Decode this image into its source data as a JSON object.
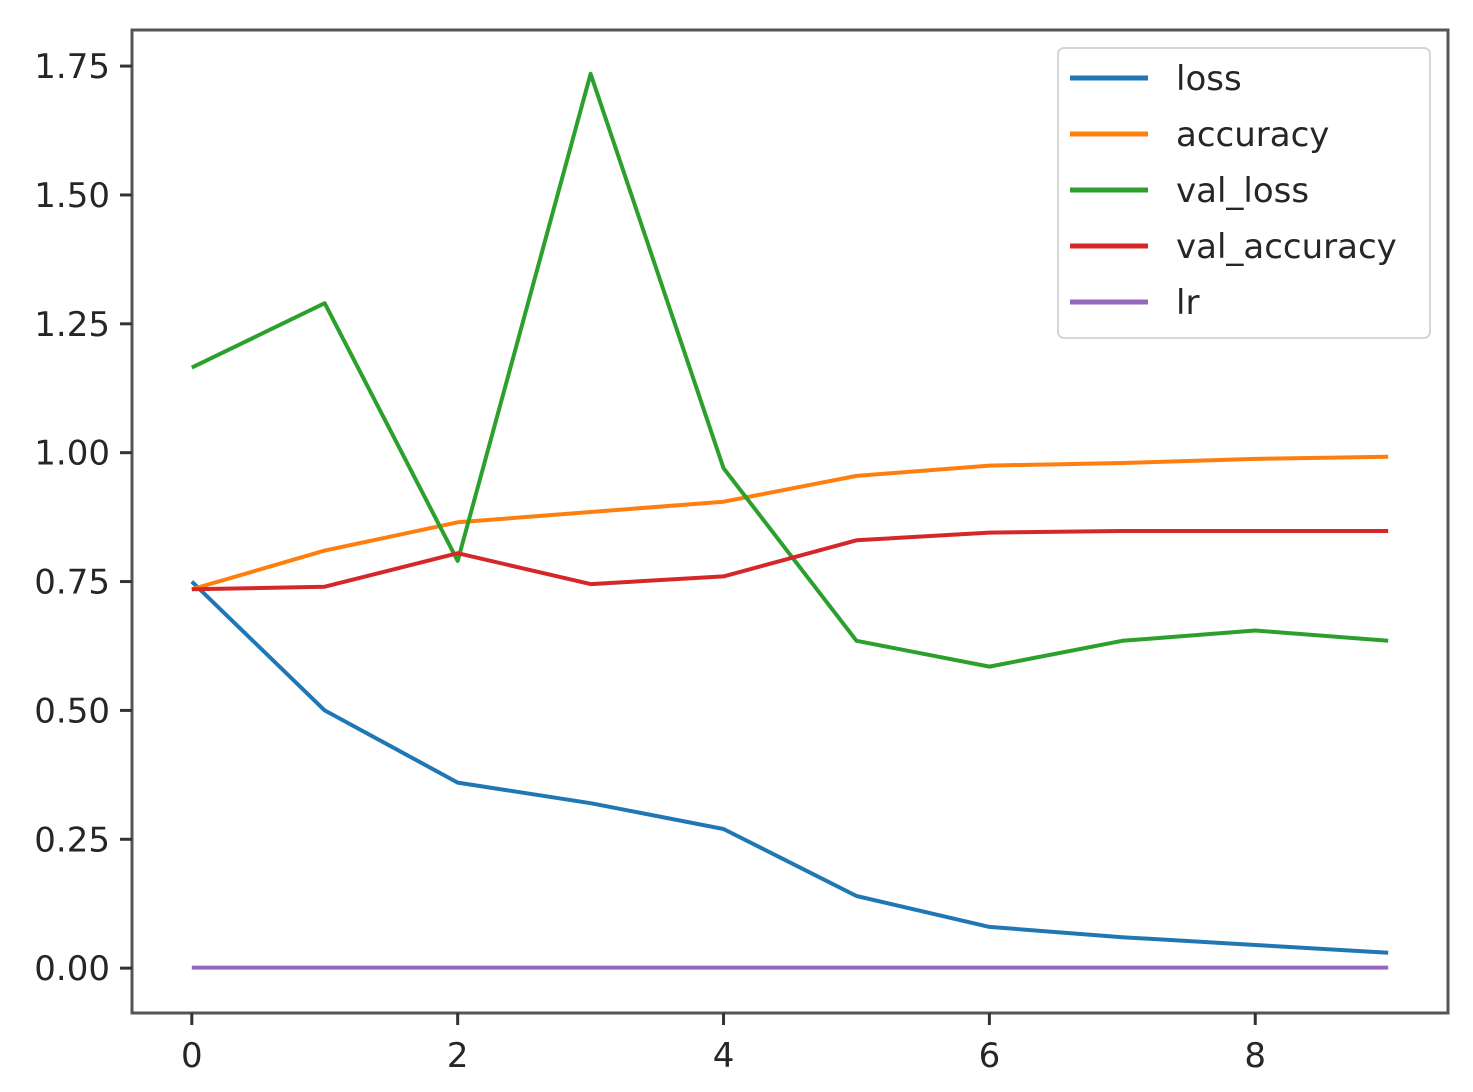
{
  "chart_data": {
    "type": "line",
    "title": "",
    "xlabel": "",
    "ylabel": "",
    "x": [
      0,
      1,
      2,
      3,
      4,
      5,
      6,
      7,
      8,
      9
    ],
    "xlim": [
      -0.45,
      9.45
    ],
    "ylim": [
      -0.087,
      1.82
    ],
    "xticks": [
      0,
      2,
      4,
      6,
      8
    ],
    "xtick_labels": [
      "0",
      "2",
      "4",
      "6",
      "8"
    ],
    "yticks": [
      0.0,
      0.25,
      0.5,
      0.75,
      1.0,
      1.25,
      1.5,
      1.75
    ],
    "ytick_labels": [
      "0.00",
      "0.25",
      "0.50",
      "0.75",
      "1.00",
      "1.25",
      "1.50",
      "1.75"
    ],
    "grid": false,
    "legend_position": "top-right",
    "series": [
      {
        "name": "loss",
        "color": "#1f77b4",
        "values": [
          0.75,
          0.5,
          0.36,
          0.32,
          0.27,
          0.14,
          0.08,
          0.06,
          0.045,
          0.03
        ]
      },
      {
        "name": "accuracy",
        "color": "#ff7f0e",
        "values": [
          0.735,
          0.81,
          0.865,
          0.885,
          0.905,
          0.955,
          0.975,
          0.98,
          0.988,
          0.992
        ]
      },
      {
        "name": "val_loss",
        "color": "#2ca02c",
        "values": [
          1.165,
          1.29,
          0.79,
          1.735,
          0.97,
          0.635,
          0.585,
          0.635,
          0.655,
          0.635
        ]
      },
      {
        "name": "val_accuracy",
        "color": "#d62728",
        "values": [
          0.735,
          0.74,
          0.805,
          0.745,
          0.76,
          0.83,
          0.845,
          0.848,
          0.848,
          0.848
        ]
      },
      {
        "name": "lr",
        "color": "#9467bd",
        "values": [
          0.001,
          0.001,
          0.001,
          0.001,
          0.001,
          0.001,
          0.001,
          0.001,
          0.001,
          0.001
        ]
      }
    ]
  }
}
